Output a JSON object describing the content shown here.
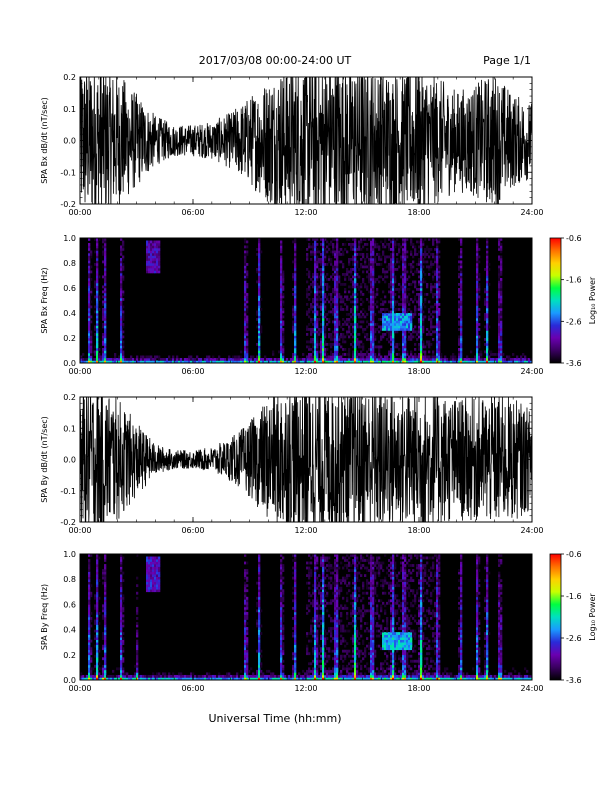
{
  "header": {
    "title": "2017/03/08  00:00-24:00 UT",
    "page": "Page 1/1"
  },
  "colorbar": {
    "label": "Log₁₀ Power",
    "ticks": [
      "-0.6",
      "-1.6",
      "-2.6",
      "-3.6"
    ],
    "tick_values": [
      -0.6,
      -1.6,
      -2.6,
      -3.6
    ],
    "range": [
      -3.6,
      -0.6
    ],
    "colors": [
      "#000000",
      "#3a0060",
      "#6a00b0",
      "#2a2ad8",
      "#1a9aff",
      "#00e0c0",
      "#00ff40",
      "#c8ff00",
      "#ffd000",
      "#ff7000",
      "#ff0000"
    ]
  },
  "chart_data": [
    {
      "type": "line",
      "ylabel": "SPA Bx dB/dt (nT/sec)",
      "xticks": [
        "00:00",
        "06:00",
        "12:00",
        "18:00",
        "24:00"
      ],
      "yticks": [
        "0.2",
        "0.1",
        "0.0",
        "-0.1",
        "-0.2"
      ],
      "xlim": [
        0,
        24
      ],
      "ylim": [
        -0.2,
        0.2
      ],
      "x_hours": [
        0,
        1,
        2,
        3,
        4,
        5,
        6,
        7,
        8,
        9,
        10,
        11,
        12,
        13,
        14,
        15,
        16,
        17,
        18,
        19,
        20,
        21,
        22,
        23,
        24
      ],
      "amplitude": [
        0.25,
        0.25,
        0.22,
        0.15,
        0.08,
        0.05,
        0.05,
        0.06,
        0.09,
        0.14,
        0.2,
        0.25,
        0.25,
        0.25,
        0.25,
        0.24,
        0.23,
        0.22,
        0.24,
        0.2,
        0.16,
        0.18,
        0.22,
        0.15,
        0.12
      ]
    },
    {
      "type": "heatmap",
      "ylabel": "SPA Bx Freq (Hz)",
      "xticks": [
        "00:00",
        "06:00",
        "12:00",
        "18:00",
        "24:00"
      ],
      "yticks": [
        "1.0",
        "0.8",
        "0.6",
        "0.4",
        "0.2",
        "0.0"
      ],
      "xlim": [
        0,
        24
      ],
      "ylim": [
        0,
        1
      ],
      "zlim": [
        -3.6,
        -0.6
      ],
      "spikes_hours": [
        0.5,
        0.9,
        1.3,
        2.2,
        8.8,
        9.5,
        10.7,
        11.4,
        12.5,
        12.9,
        13.6,
        14.6,
        15.5,
        16.6,
        17.2,
        18.1,
        19.0,
        20.2,
        21.1,
        21.6,
        22.3
      ],
      "features": [
        {
          "t_start": 16.0,
          "t_end": 17.6,
          "f_low": 0.27,
          "f_high": 0.4,
          "level": -2.4
        },
        {
          "t_start": 3.5,
          "t_end": 4.3,
          "f_low": 0.72,
          "f_high": 0.97,
          "level": -3.0
        }
      ]
    },
    {
      "type": "line",
      "ylabel": "SPA By dB/dt (nT/sec)",
      "xticks": [
        "00:00",
        "06:00",
        "12:00",
        "18:00",
        "24:00"
      ],
      "yticks": [
        "0.2",
        "0.1",
        "0.0",
        "-0.1",
        "-0.2"
      ],
      "xlim": [
        0,
        24
      ],
      "ylim": [
        -0.2,
        0.2
      ],
      "x_hours": [
        0,
        1,
        2,
        3,
        4,
        5,
        6,
        7,
        8,
        9,
        10,
        11,
        12,
        13,
        14,
        15,
        16,
        17,
        18,
        19,
        20,
        21,
        22,
        23,
        24
      ],
      "amplitude": [
        0.25,
        0.25,
        0.2,
        0.12,
        0.05,
        0.03,
        0.03,
        0.04,
        0.07,
        0.12,
        0.2,
        0.25,
        0.25,
        0.25,
        0.25,
        0.24,
        0.24,
        0.22,
        0.24,
        0.22,
        0.2,
        0.2,
        0.22,
        0.2,
        0.16
      ]
    },
    {
      "type": "heatmap",
      "ylabel": "SPA By Freq (Hz)",
      "xticks": [
        "00:00",
        "06:00",
        "12:00",
        "18:00",
        "24:00"
      ],
      "yticks": [
        "1.0",
        "0.8",
        "0.6",
        "0.4",
        "0.2",
        "0.0"
      ],
      "xlim": [
        0,
        24
      ],
      "ylim": [
        0,
        1
      ],
      "zlim": [
        -3.6,
        -0.6
      ],
      "spikes_hours": [
        0.5,
        0.9,
        1.3,
        2.2,
        3.0,
        8.8,
        9.5,
        10.7,
        11.4,
        12.5,
        12.9,
        13.6,
        14.6,
        15.5,
        16.6,
        17.2,
        18.1,
        19.0,
        20.2,
        21.1,
        21.6,
        22.3
      ],
      "features": [
        {
          "t_start": 16.0,
          "t_end": 17.6,
          "f_low": 0.25,
          "f_high": 0.38,
          "level": -2.3
        },
        {
          "t_start": 3.5,
          "t_end": 4.3,
          "f_low": 0.7,
          "f_high": 0.97,
          "level": -2.9
        }
      ]
    }
  ],
  "xlabel": "Universal Time (hh:mm)"
}
